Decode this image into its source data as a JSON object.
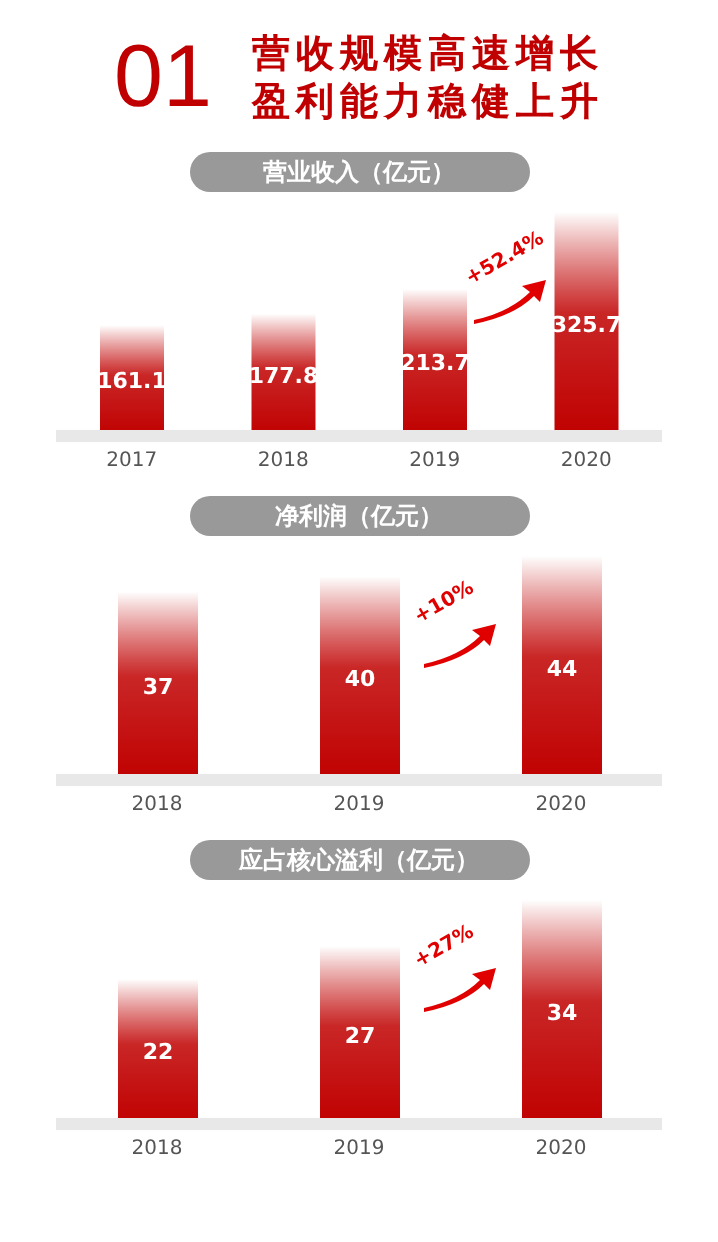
{
  "chart_data": [
    {
      "type": "bar",
      "title": "营业收入（亿元）",
      "annotations": [
        "01",
        "营收规模高速增长",
        "盈利能力稳健上升",
        "+52.4%"
      ],
      "categories": [
        "2017",
        "2018",
        "2019",
        "2020"
      ],
      "values": [
        161.1,
        177.8,
        213.7,
        325.7
      ],
      "color": "#c00000",
      "data_labels": true,
      "tick_labels": "x",
      "grid": false,
      "legend": false
    },
    {
      "type": "bar",
      "title": "净利润（亿元）",
      "annotations": [
        "+10%"
      ],
      "categories": [
        "2018",
        "2019",
        "2020"
      ],
      "values": [
        37,
        40,
        44
      ],
      "color": "#c00000",
      "data_labels": true,
      "tick_labels": "x",
      "grid": false,
      "legend": false
    },
    {
      "type": "bar",
      "title": "应占核心溢利（亿元）",
      "annotations": [
        "+27%"
      ],
      "categories": [
        "2018",
        "2019",
        "2020"
      ],
      "values": [
        22,
        27,
        34
      ],
      "color": "#c00000",
      "data_labels": true,
      "tick_labels": "x",
      "grid": false,
      "legend": false
    }
  ]
}
